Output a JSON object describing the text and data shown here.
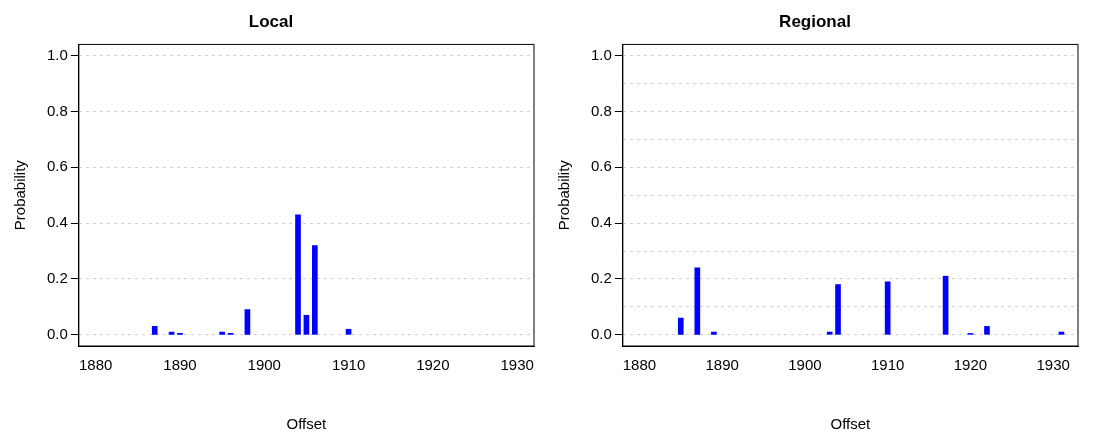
{
  "chart_data": [
    {
      "type": "bar",
      "title": "Local",
      "xlabel": "Offset",
      "ylabel": "Probability",
      "x": [
        1887,
        1889,
        1890,
        1895,
        1896,
        1898,
        1904,
        1905,
        1906,
        1910
      ],
      "series": [
        {
          "color": "#0000ff",
          "values": [
            0.03,
            0.01,
            0.005,
            0.01,
            0.005,
            0.09,
            0.43,
            0.07,
            0.32,
            0.02
          ]
        }
      ],
      "xlim": [
        1878,
        1932
      ],
      "xticks": [
        1880,
        1890,
        1900,
        1910,
        1920,
        1930
      ],
      "ylim": [
        -0.04,
        1.04
      ],
      "yticks": [
        {
          "value": 0,
          "label": "0.0"
        },
        0.2,
        0.4,
        0.6,
        0.8,
        {
          "value": 1,
          "label": "1.0"
        }
      ],
      "grid": "y"
    },
    {
      "type": "bar",
      "title": "Regional",
      "xlabel": "Offset",
      "ylabel": "Probability",
      "x": [
        1885,
        1887,
        1889,
        1903,
        1904,
        1910,
        1917,
        1920,
        1922,
        1931
      ],
      "series": [
        {
          "color": "#0000ff",
          "values": [
            0.06,
            0.24,
            0.01,
            0.01,
            0.18,
            0.19,
            0.21,
            0.005,
            0.03,
            0.01
          ]
        }
      ],
      "xlim": [
        1878,
        1933
      ],
      "xticks": [
        1880,
        1890,
        1900,
        1910,
        1920,
        1930
      ],
      "ylim": [
        -0.04,
        1.04
      ],
      "yticks": [
        {
          "value": 0,
          "label": "0.0"
        },
        {
          "value": 0.1,
          "label": null
        },
        0.2,
        {
          "value": 0.3,
          "label": null
        },
        0.4,
        {
          "value": 0.5,
          "label": null
        },
        0.6,
        {
          "value": 0.7,
          "label": null
        },
        0.8,
        {
          "value": 0.9,
          "label": null
        },
        {
          "value": 1,
          "label": "1.0"
        }
      ],
      "grid": "y"
    }
  ]
}
